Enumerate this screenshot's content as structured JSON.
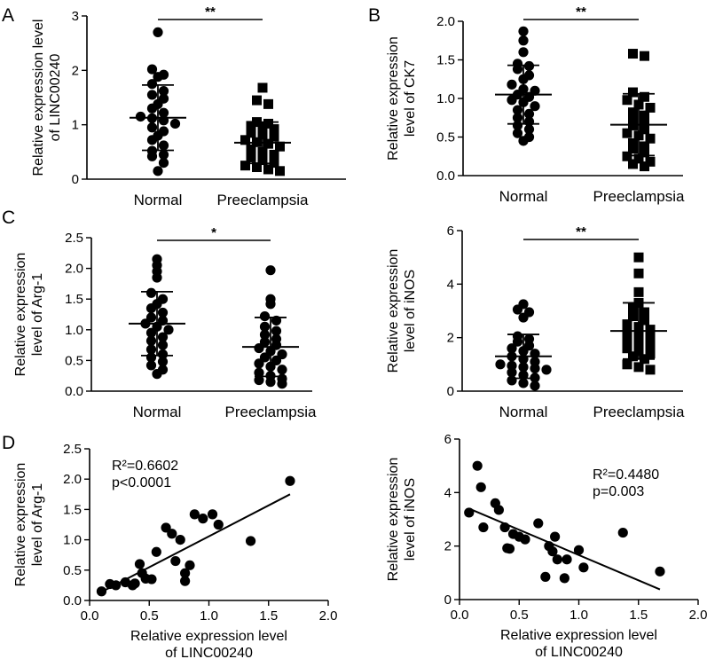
{
  "chart_data": [
    {
      "id": "A",
      "type": "scatter",
      "panel_label": "A",
      "ylabel_lines": [
        "Relative expression level",
        "of LINC00240"
      ],
      "ylim": [
        0,
        3
      ],
      "yticks": [
        0,
        1,
        2,
        3
      ],
      "yticklabels": [
        "0",
        "1",
        "2",
        "3"
      ],
      "categories": [
        "Normal",
        "Preeclampsia"
      ],
      "markers": [
        "circle",
        "square"
      ],
      "significance": "**",
      "groups": [
        {
          "name": "Normal",
          "mean": 1.13,
          "sd": 0.6,
          "values": [
            2.7,
            2.02,
            1.92,
            1.88,
            1.75,
            1.62,
            1.55,
            1.48,
            1.38,
            1.3,
            1.22,
            1.15,
            1.12,
            1.08,
            1.02,
            0.95,
            0.88,
            0.8,
            0.72,
            0.62,
            0.52,
            0.45,
            0.42,
            0.3,
            0.15
          ]
        },
        {
          "name": "Preeclampsia",
          "mean": 0.67,
          "sd": 0.38,
          "values": [
            1.68,
            1.45,
            1.38,
            1.05,
            1.02,
            0.98,
            0.95,
            0.92,
            0.85,
            0.82,
            0.78,
            0.72,
            0.68,
            0.65,
            0.6,
            0.55,
            0.5,
            0.45,
            0.4,
            0.35,
            0.3,
            0.25,
            0.22,
            0.18,
            0.15
          ]
        }
      ]
    },
    {
      "id": "B",
      "type": "scatter",
      "panel_label": "B",
      "ylabel_lines": [
        "Relative expression",
        "level of CK7"
      ],
      "ylim": [
        0,
        2
      ],
      "yticks": [
        0,
        0.5,
        1,
        1.5,
        2
      ],
      "yticklabels": [
        "0.0",
        "0.5",
        "1.0",
        "1.5",
        "2.0"
      ],
      "categories": [
        "Normal",
        "Preeclampsia"
      ],
      "markers": [
        "circle",
        "square"
      ],
      "significance": "**",
      "groups": [
        {
          "name": "Normal",
          "mean": 1.05,
          "sd": 0.38,
          "values": [
            1.87,
            1.75,
            1.6,
            1.45,
            1.42,
            1.38,
            1.3,
            1.25,
            1.18,
            1.12,
            1.1,
            1.05,
            1.02,
            0.98,
            0.95,
            0.9,
            0.85,
            0.8,
            0.75,
            0.7,
            0.65,
            0.6,
            0.55,
            0.5,
            0.45
          ]
        },
        {
          "name": "Preeclampsia",
          "mean": 0.66,
          "sd": 0.4,
          "values": [
            1.58,
            1.55,
            1.08,
            1.02,
            0.98,
            0.92,
            0.88,
            0.82,
            0.78,
            0.75,
            0.7,
            0.65,
            0.6,
            0.55,
            0.52,
            0.48,
            0.42,
            0.38,
            0.35,
            0.3,
            0.25,
            0.22,
            0.18,
            0.15,
            0.12
          ]
        }
      ]
    },
    {
      "id": "C1",
      "type": "scatter",
      "panel_label": "C",
      "ylabel_lines": [
        "Relative expression",
        "level of Arg-1"
      ],
      "ylim": [
        0,
        2.5
      ],
      "yticks": [
        0,
        0.5,
        1,
        1.5,
        2,
        2.5
      ],
      "yticklabels": [
        "0.0",
        "0.5",
        "1.0",
        "1.5",
        "2.0",
        "2.5"
      ],
      "categories": [
        "Normal",
        "Preeclampsia"
      ],
      "markers": [
        "circle",
        "circle"
      ],
      "significance": "*",
      "groups": [
        {
          "name": "Normal",
          "mean": 1.1,
          "sd": 0.52,
          "values": [
            2.15,
            2.05,
            1.95,
            1.85,
            1.6,
            1.5,
            1.42,
            1.35,
            1.28,
            1.2,
            1.15,
            1.1,
            1.05,
            1.0,
            0.95,
            0.88,
            0.82,
            0.75,
            0.68,
            0.6,
            0.55,
            0.48,
            0.42,
            0.35,
            0.28
          ]
        },
        {
          "name": "Preeclampsia",
          "mean": 0.72,
          "sd": 0.48,
          "values": [
            1.97,
            1.5,
            1.42,
            1.22,
            1.15,
            1.05,
            0.98,
            0.92,
            0.85,
            0.8,
            0.75,
            0.7,
            0.65,
            0.6,
            0.55,
            0.5,
            0.45,
            0.4,
            0.35,
            0.3,
            0.25,
            0.2,
            0.18,
            0.15,
            0.12
          ]
        }
      ]
    },
    {
      "id": "C2",
      "type": "scatter",
      "panel_label": "",
      "ylabel_lines": [
        "Relative expression",
        "level of iNOS"
      ],
      "ylim": [
        0,
        6
      ],
      "yticks": [
        0,
        2,
        4,
        6
      ],
      "yticklabels": [
        "0",
        "2",
        "4",
        "6"
      ],
      "categories": [
        "Normal",
        "Preeclampsia"
      ],
      "markers": [
        "circle",
        "square"
      ],
      "significance": "**",
      "groups": [
        {
          "name": "Normal",
          "mean": 1.3,
          "sd": 0.82,
          "values": [
            3.25,
            3.05,
            2.95,
            2.75,
            2.05,
            1.95,
            1.85,
            1.7,
            1.6,
            1.5,
            1.4,
            1.3,
            1.2,
            1.1,
            1.0,
            0.95,
            0.9,
            0.85,
            0.8,
            0.7,
            0.6,
            0.5,
            0.4,
            0.3,
            0.2
          ]
        },
        {
          "name": "Preeclampsia",
          "mean": 2.25,
          "sd": 1.05,
          "values": [
            5.0,
            4.4,
            3.7,
            3.3,
            3.1,
            2.95,
            2.8,
            2.65,
            2.5,
            2.4,
            2.3,
            2.2,
            2.1,
            2.0,
            1.9,
            1.8,
            1.7,
            1.6,
            1.5,
            1.4,
            1.3,
            1.2,
            1.0,
            0.9,
            0.8
          ]
        }
      ]
    },
    {
      "id": "D1",
      "type": "scatter",
      "panel_label": "D",
      "ylabel_lines": [
        "Relative expression",
        "level of Arg-1"
      ],
      "xlabel_lines": [
        "Relative expression level",
        "of LINC00240"
      ],
      "xlim": [
        0,
        2
      ],
      "xticks": [
        0,
        0.5,
        1,
        1.5,
        2
      ],
      "xticklabels": [
        "0.0",
        "0.5",
        "1.0",
        "1.5",
        "2.0"
      ],
      "ylim": [
        0,
        2.5
      ],
      "yticks": [
        0,
        0.5,
        1,
        1.5,
        2,
        2.5
      ],
      "yticklabels": [
        "0.0",
        "0.5",
        "1.0",
        "1.5",
        "2.0",
        "2.5"
      ],
      "annotation_lines": [
        "R²=0.6602",
        "p<0.0001"
      ],
      "annotation_position": "top-left",
      "fit_line": {
        "x": [
          0.08,
          1.68
        ],
        "y": [
          0.12,
          1.75
        ]
      },
      "points": [
        {
          "x": 0.1,
          "y": 0.15
        },
        {
          "x": 0.17,
          "y": 0.27
        },
        {
          "x": 0.22,
          "y": 0.25
        },
        {
          "x": 0.3,
          "y": 0.3
        },
        {
          "x": 0.36,
          "y": 0.25
        },
        {
          "x": 0.38,
          "y": 0.28
        },
        {
          "x": 0.42,
          "y": 0.6
        },
        {
          "x": 0.44,
          "y": 0.45
        },
        {
          "x": 0.47,
          "y": 0.36
        },
        {
          "x": 0.52,
          "y": 0.35
        },
        {
          "x": 0.56,
          "y": 0.8
        },
        {
          "x": 0.64,
          "y": 1.2
        },
        {
          "x": 0.69,
          "y": 1.1
        },
        {
          "x": 0.72,
          "y": 0.65
        },
        {
          "x": 0.76,
          "y": 1.0
        },
        {
          "x": 0.8,
          "y": 0.45
        },
        {
          "x": 0.8,
          "y": 0.32
        },
        {
          "x": 0.84,
          "y": 0.58
        },
        {
          "x": 0.88,
          "y": 1.42
        },
        {
          "x": 0.95,
          "y": 1.35
        },
        {
          "x": 1.03,
          "y": 1.42
        },
        {
          "x": 1.08,
          "y": 1.25
        },
        {
          "x": 1.35,
          "y": 0.98
        },
        {
          "x": 1.68,
          "y": 1.97
        }
      ]
    },
    {
      "id": "D2",
      "type": "scatter",
      "panel_label": "",
      "ylabel_lines": [
        "Relative expression",
        "level of iNOS"
      ],
      "xlabel_lines": [
        "Relative expression level",
        "of LINC00240"
      ],
      "xlim": [
        0,
        2
      ],
      "xticks": [
        0,
        0.5,
        1,
        1.5,
        2
      ],
      "xticklabels": [
        "0.0",
        "0.5",
        "1.0",
        "1.5",
        "2.0"
      ],
      "ylim": [
        0,
        6
      ],
      "yticks": [
        0,
        2,
        4,
        6
      ],
      "yticklabels": [
        "0",
        "2",
        "4",
        "6"
      ],
      "annotation_lines": [
        "R²=0.4480",
        "p=0.003"
      ],
      "annotation_position": "top-right",
      "fit_line": {
        "x": [
          0.08,
          1.68
        ],
        "y": [
          3.4,
          0.38
        ]
      },
      "points": [
        {
          "x": 0.08,
          "y": 3.25
        },
        {
          "x": 0.15,
          "y": 5.0
        },
        {
          "x": 0.18,
          "y": 4.2
        },
        {
          "x": 0.2,
          "y": 2.7
        },
        {
          "x": 0.3,
          "y": 3.6
        },
        {
          "x": 0.33,
          "y": 3.35
        },
        {
          "x": 0.38,
          "y": 2.7
        },
        {
          "x": 0.4,
          "y": 1.92
        },
        {
          "x": 0.42,
          "y": 1.9
        },
        {
          "x": 0.45,
          "y": 2.45
        },
        {
          "x": 0.5,
          "y": 2.35
        },
        {
          "x": 0.55,
          "y": 2.25
        },
        {
          "x": 0.66,
          "y": 2.85
        },
        {
          "x": 0.72,
          "y": 0.85
        },
        {
          "x": 0.75,
          "y": 2.0
        },
        {
          "x": 0.78,
          "y": 1.8
        },
        {
          "x": 0.8,
          "y": 2.35
        },
        {
          "x": 0.82,
          "y": 1.5
        },
        {
          "x": 0.88,
          "y": 0.8
        },
        {
          "x": 0.9,
          "y": 1.5
        },
        {
          "x": 1.0,
          "y": 1.85
        },
        {
          "x": 1.04,
          "y": 1.2
        },
        {
          "x": 1.37,
          "y": 2.5
        },
        {
          "x": 1.68,
          "y": 1.05
        }
      ]
    }
  ]
}
